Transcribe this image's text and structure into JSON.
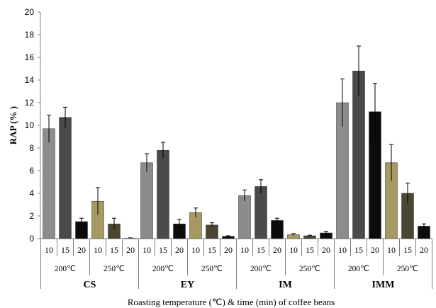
{
  "chart_data": {
    "type": "bar",
    "ylabel": "RAP (% )",
    "xlabel": "Roasting temperature (℃) & time (min) of coffee beans",
    "ylim": [
      0,
      20
    ],
    "yticks": [
      0,
      2,
      4,
      6,
      8,
      10,
      12,
      14,
      16,
      18,
      20
    ],
    "groups": [
      {
        "name": "CS",
        "subgroups": [
          {
            "temp": "200℃",
            "bars": [
              {
                "time": "10",
                "value": 9.7,
                "error": 1.2,
                "color": "#8c8c8c"
              },
              {
                "time": "15",
                "value": 10.7,
                "error": 0.9,
                "color": "#4a4a4a"
              },
              {
                "time": "20",
                "value": 1.5,
                "error": 0.3,
                "color": "#0c0c0c"
              }
            ]
          },
          {
            "temp": "250℃",
            "bars": [
              {
                "time": "10",
                "value": 3.3,
                "error": 1.2,
                "color": "#a69a62"
              },
              {
                "time": "15",
                "value": 1.3,
                "error": 0.5,
                "color": "#4b4632"
              },
              {
                "time": "20",
                "value": 0.05,
                "error": 0.02,
                "color": "#f2f2f2"
              }
            ]
          }
        ]
      },
      {
        "name": "EY",
        "subgroups": [
          {
            "temp": "200℃",
            "bars": [
              {
                "time": "10",
                "value": 6.7,
                "error": 0.8,
                "color": "#8c8c8c"
              },
              {
                "time": "15",
                "value": 7.8,
                "error": 0.7,
                "color": "#4a4a4a"
              },
              {
                "time": "20",
                "value": 1.3,
                "error": 0.4,
                "color": "#0c0c0c"
              }
            ]
          },
          {
            "temp": "250℃",
            "bars": [
              {
                "time": "10",
                "value": 2.3,
                "error": 0.4,
                "color": "#a69a62"
              },
              {
                "time": "15",
                "value": 1.2,
                "error": 0.2,
                "color": "#4b4632"
              },
              {
                "time": "20",
                "value": 0.2,
                "error": 0.05,
                "color": "#0c0c0c"
              }
            ]
          }
        ]
      },
      {
        "name": "IM",
        "subgroups": [
          {
            "temp": "200℃",
            "bars": [
              {
                "time": "10",
                "value": 3.8,
                "error": 0.5,
                "color": "#8c8c8c"
              },
              {
                "time": "15",
                "value": 4.6,
                "error": 0.6,
                "color": "#4a4a4a"
              },
              {
                "time": "20",
                "value": 1.6,
                "error": 0.2,
                "color": "#0c0c0c"
              }
            ]
          },
          {
            "temp": "250℃",
            "bars": [
              {
                "time": "10",
                "value": 0.35,
                "error": 0.1,
                "color": "#a69a62"
              },
              {
                "time": "15",
                "value": 0.25,
                "error": 0.05,
                "color": "#4b4632"
              },
              {
                "time": "20",
                "value": 0.5,
                "error": 0.15,
                "color": "#0c0c0c"
              }
            ]
          }
        ]
      },
      {
        "name": "IMM",
        "subgroups": [
          {
            "temp": "200℃",
            "bars": [
              {
                "time": "10",
                "value": 12.0,
                "error": 2.1,
                "color": "#8c8c8c"
              },
              {
                "time": "15",
                "value": 14.8,
                "error": 2.2,
                "color": "#4a4a4a"
              },
              {
                "time": "20",
                "value": 11.2,
                "error": 2.5,
                "color": "#0c0c0c"
              }
            ]
          },
          {
            "temp": "250℃",
            "bars": [
              {
                "time": "10",
                "value": 6.7,
                "error": 1.6,
                "color": "#a69a62"
              },
              {
                "time": "15",
                "value": 4.0,
                "error": 0.9,
                "color": "#4b4632"
              },
              {
                "time": "20",
                "value": 1.1,
                "error": 0.2,
                "color": "#0c0c0c"
              }
            ]
          }
        ]
      }
    ]
  }
}
